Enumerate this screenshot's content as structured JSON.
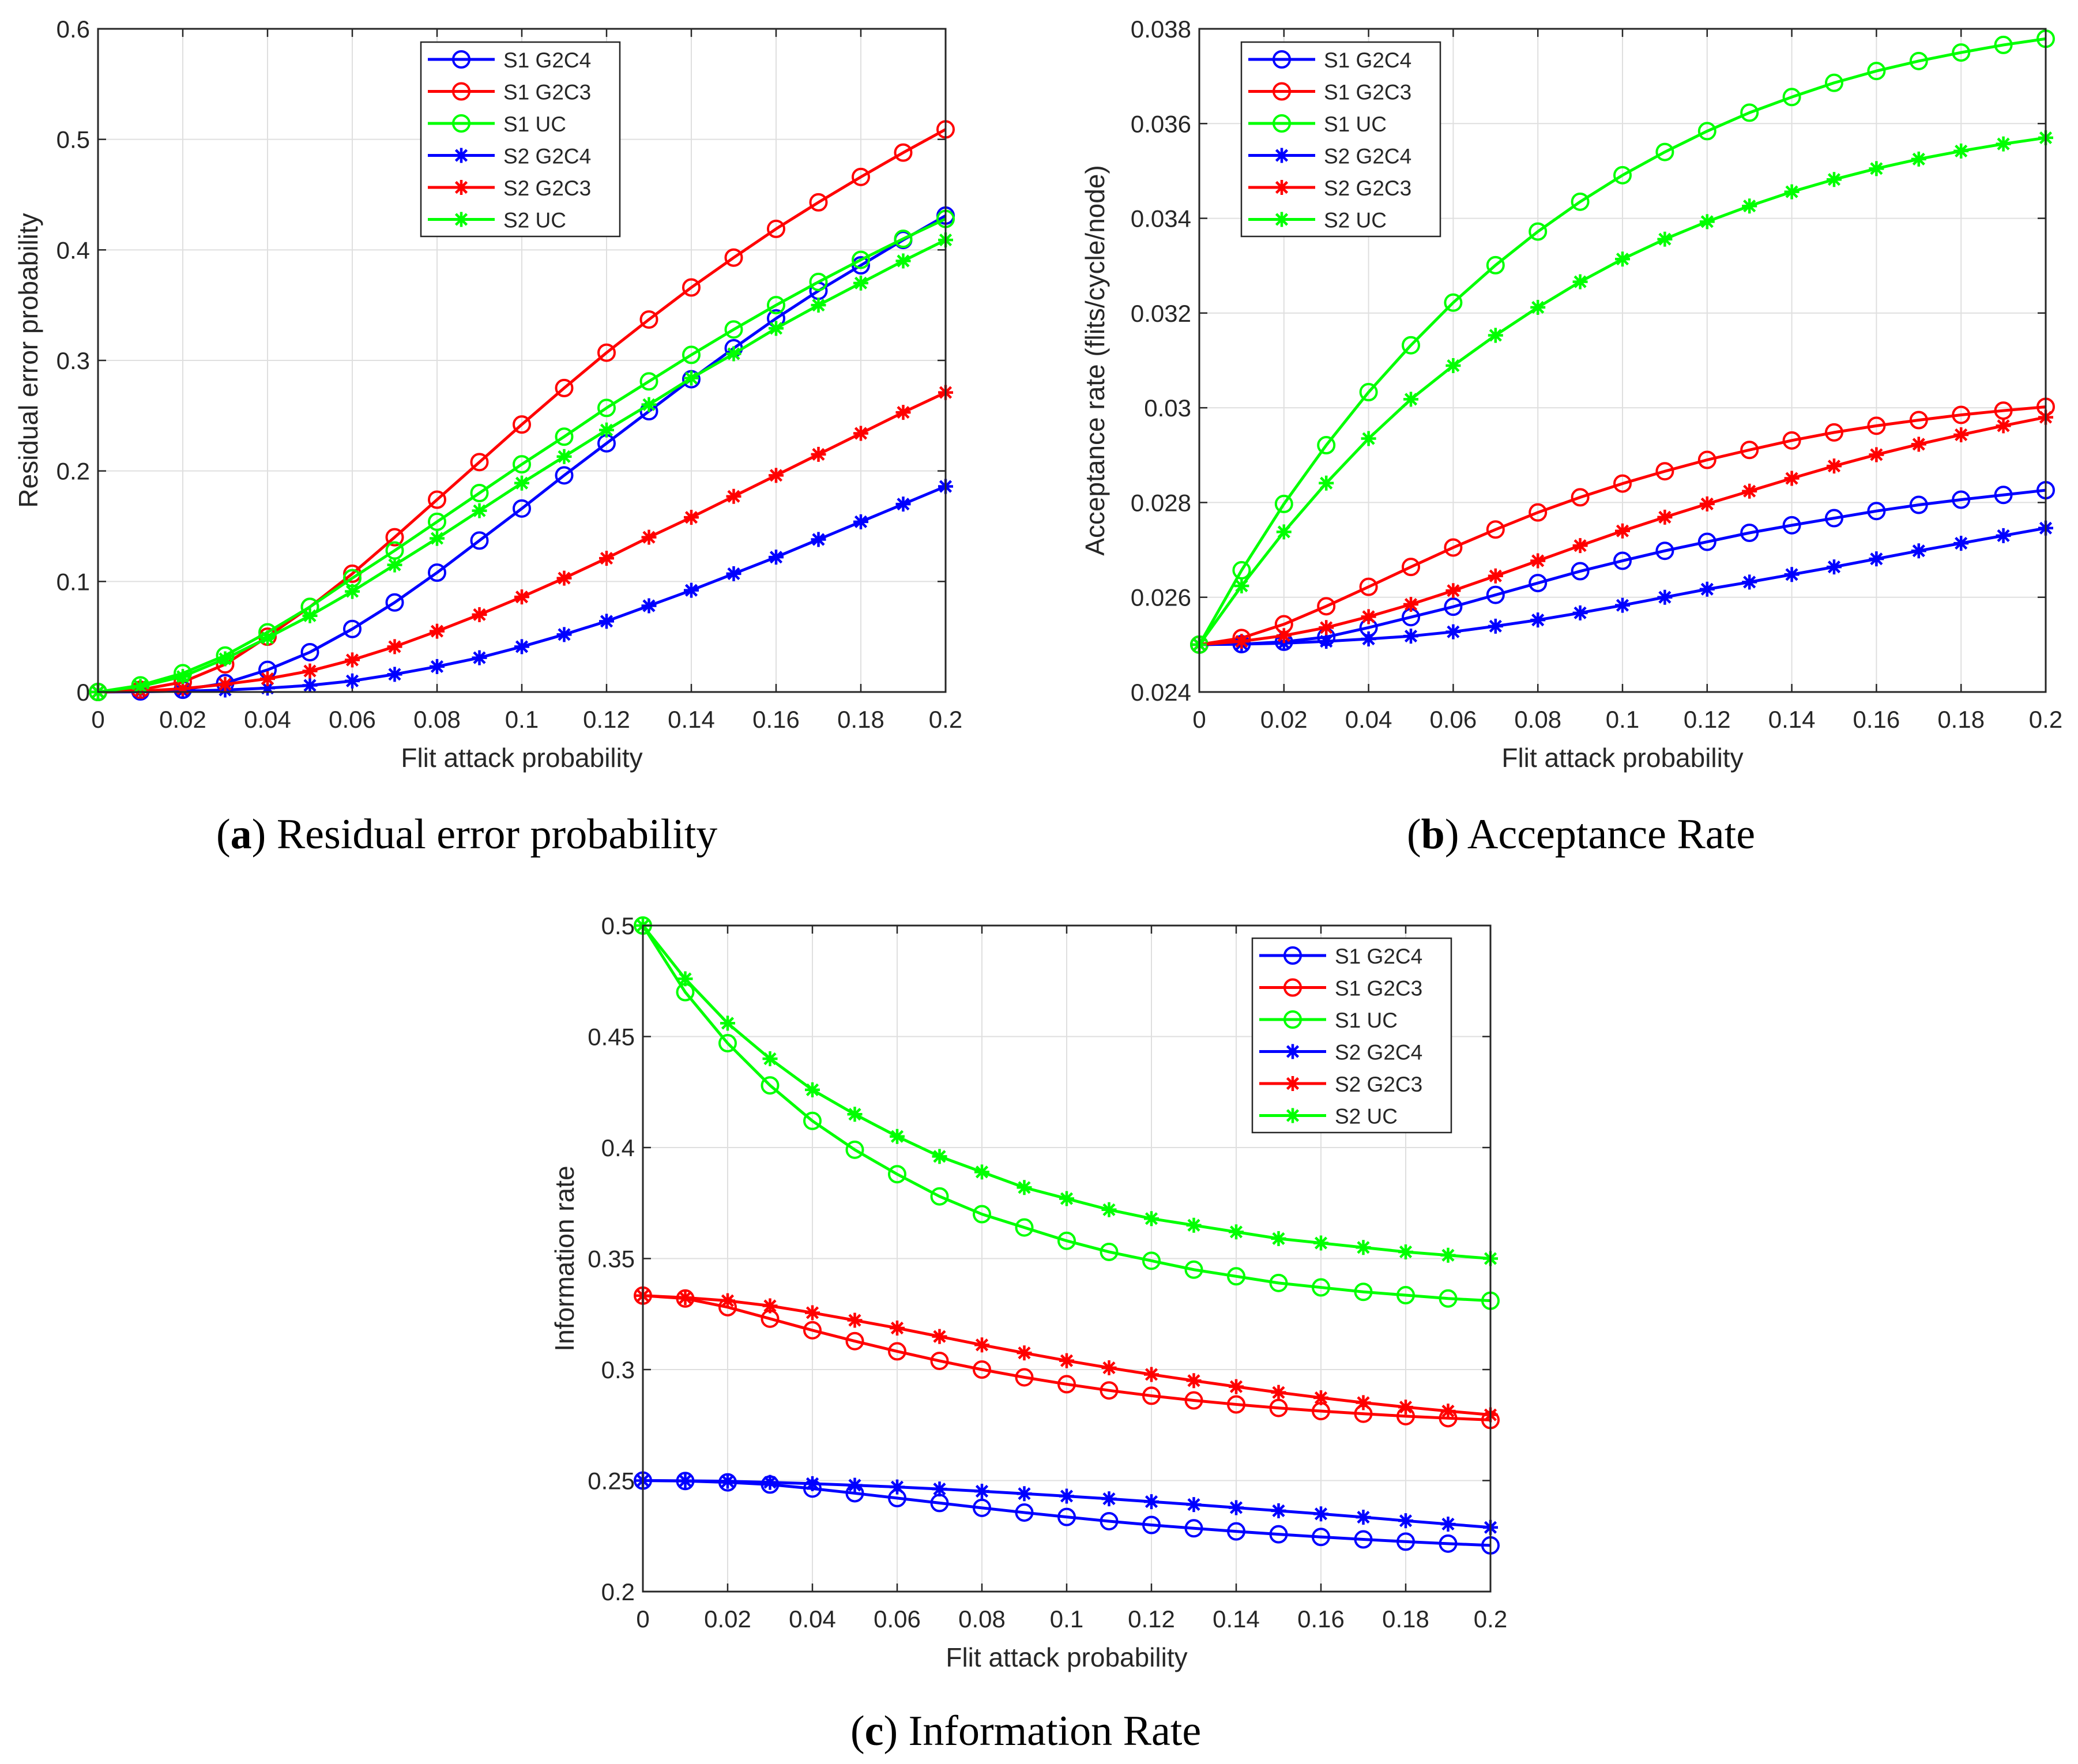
{
  "colors": {
    "blue": "#0000ff",
    "red": "#ff0000",
    "green": "#00ff00",
    "grid": "#dfdfdf",
    "axis": "#262626"
  },
  "captions": [
    {
      "letter": "a",
      "text": "Residual error probability"
    },
    {
      "letter": "b",
      "text": "Acceptance Rate"
    },
    {
      "letter": "c",
      "text": "Information Rate"
    }
  ],
  "chart_data": [
    {
      "type": "line",
      "title": "",
      "xlabel": "Flit attack probability",
      "ylabel": "Residual error probability",
      "xlim": [
        0,
        0.2
      ],
      "ylim": [
        0,
        0.6
      ],
      "xticks": [
        0,
        0.02,
        0.04,
        0.06,
        0.08,
        0.1,
        0.12,
        0.14,
        0.16,
        0.18,
        0.2
      ],
      "xtick_labels": [
        "0",
        "0.02",
        "0.04",
        "0.06",
        "0.08",
        "0.1",
        "0.12",
        "0.14",
        "0.16",
        "0.18",
        "0.2"
      ],
      "yticks": [
        0,
        0.1,
        0.2,
        0.3,
        0.4,
        0.5,
        0.6
      ],
      "ytick_labels": [
        "0",
        "0.1",
        "0.2",
        "0.3",
        "0.4",
        "0.5",
        "0.6"
      ],
      "grid": true,
      "legend_position": "top-center",
      "x": [
        0,
        0.01,
        0.02,
        0.03,
        0.04,
        0.05,
        0.06,
        0.07,
        0.08,
        0.09,
        0.1,
        0.11,
        0.12,
        0.13,
        0.14,
        0.15,
        0.16,
        0.17,
        0.18,
        0.19,
        0.2
      ],
      "series": [
        {
          "name": "S1 G2C4",
          "color": "blue",
          "marker": "circle",
          "values": [
            0,
            0.0005,
            0.002,
            0.008,
            0.02,
            0.036,
            0.057,
            0.081,
            0.108,
            0.137,
            0.166,
            0.196,
            0.225,
            0.254,
            0.283,
            0.311,
            0.338,
            0.363,
            0.386,
            0.409,
            0.431
          ]
        },
        {
          "name": "S1 G2C3",
          "color": "red",
          "marker": "circle",
          "values": [
            0,
            0.002,
            0.009,
            0.025,
            0.05,
            0.077,
            0.107,
            0.14,
            0.174,
            0.208,
            0.242,
            0.275,
            0.307,
            0.337,
            0.366,
            0.393,
            0.419,
            0.443,
            0.466,
            0.488,
            0.509
          ]
        },
        {
          "name": "S1 UC",
          "color": "green",
          "marker": "circle",
          "values": [
            0,
            0.006,
            0.017,
            0.033,
            0.054,
            0.077,
            0.103,
            0.128,
            0.154,
            0.18,
            0.206,
            0.231,
            0.257,
            0.281,
            0.305,
            0.328,
            0.35,
            0.371,
            0.391,
            0.41,
            0.428
          ]
        },
        {
          "name": "S2 G2C4",
          "color": "blue",
          "marker": "star",
          "values": [
            0,
            0.0002,
            0.0007,
            0.0018,
            0.0035,
            0.006,
            0.01,
            0.016,
            0.023,
            0.031,
            0.041,
            0.052,
            0.064,
            0.078,
            0.092,
            0.107,
            0.122,
            0.138,
            0.154,
            0.17,
            0.186
          ]
        },
        {
          "name": "S2 G2C3",
          "color": "red",
          "marker": "star",
          "values": [
            0,
            0.0008,
            0.003,
            0.007,
            0.012,
            0.019,
            0.029,
            0.041,
            0.055,
            0.07,
            0.086,
            0.103,
            0.121,
            0.14,
            0.158,
            0.177,
            0.196,
            0.215,
            0.234,
            0.253,
            0.271
          ]
        },
        {
          "name": "S2 UC",
          "color": "green",
          "marker": "star",
          "values": [
            0,
            0.005,
            0.014,
            0.03,
            0.049,
            0.069,
            0.091,
            0.115,
            0.139,
            0.164,
            0.189,
            0.213,
            0.237,
            0.26,
            0.284,
            0.306,
            0.329,
            0.35,
            0.37,
            0.39,
            0.409
          ]
        }
      ]
    },
    {
      "type": "line",
      "title": "",
      "xlabel": "Flit attack probability",
      "ylabel": "Acceptance rate (flits/cycle/node)",
      "xlim": [
        0,
        0.2
      ],
      "ylim": [
        0.024,
        0.038
      ],
      "xticks": [
        0,
        0.02,
        0.04,
        0.06,
        0.08,
        0.1,
        0.12,
        0.14,
        0.16,
        0.18,
        0.2
      ],
      "xtick_labels": [
        "0",
        "0.02",
        "0.04",
        "0.06",
        "0.08",
        "0.1",
        "0.12",
        "0.14",
        "0.16",
        "0.18",
        "0.2"
      ],
      "yticks": [
        0.024,
        0.026,
        0.028,
        0.03,
        0.032,
        0.034,
        0.036,
        0.038
      ],
      "ytick_labels": [
        "0.024",
        "0.026",
        "0.028",
        "0.03",
        "0.032",
        "0.034",
        "0.036",
        "0.038"
      ],
      "grid": true,
      "legend_position": "top-left",
      "x": [
        0,
        0.01,
        0.02,
        0.03,
        0.04,
        0.05,
        0.06,
        0.07,
        0.08,
        0.09,
        0.1,
        0.11,
        0.12,
        0.13,
        0.14,
        0.15,
        0.16,
        0.17,
        0.18,
        0.19,
        0.2
      ],
      "series": [
        {
          "name": "S1 G2C4",
          "color": "blue",
          "marker": "circle",
          "values": [
            0.025,
            0.02501,
            0.02506,
            0.02516,
            0.02536,
            0.02558,
            0.0258,
            0.02605,
            0.0263,
            0.02655,
            0.02677,
            0.02698,
            0.02717,
            0.02736,
            0.02752,
            0.02767,
            0.02782,
            0.02795,
            0.02806,
            0.02816,
            0.02826
          ]
        },
        {
          "name": "S1 G2C3",
          "color": "red",
          "marker": "circle",
          "values": [
            0.025,
            0.02514,
            0.02543,
            0.02581,
            0.02622,
            0.02664,
            0.02705,
            0.02743,
            0.02779,
            0.02811,
            0.0284,
            0.02866,
            0.0289,
            0.02911,
            0.02931,
            0.02948,
            0.02962,
            0.02974,
            0.02985,
            0.02994,
            0.03002
          ]
        },
        {
          "name": "S1 UC",
          "color": "green",
          "marker": "circle",
          "values": [
            0.025,
            0.02657,
            0.02797,
            0.02921,
            0.03033,
            0.03132,
            0.03222,
            0.03301,
            0.03372,
            0.03435,
            0.03491,
            0.0354,
            0.03584,
            0.03623,
            0.03656,
            0.03686,
            0.03711,
            0.03732,
            0.0375,
            0.03766,
            0.03779
          ]
        },
        {
          "name": "S2 G2C4",
          "color": "blue",
          "marker": "star",
          "values": [
            0.025,
            0.02501,
            0.02503,
            0.02507,
            0.02512,
            0.02518,
            0.02527,
            0.02539,
            0.02552,
            0.02567,
            0.02583,
            0.026,
            0.02617,
            0.02632,
            0.02648,
            0.02664,
            0.02681,
            0.02698,
            0.02714,
            0.0273,
            0.02746
          ]
        },
        {
          "name": "S2 G2C3",
          "color": "red",
          "marker": "star",
          "values": [
            0.025,
            0.02507,
            0.02519,
            0.02536,
            0.02559,
            0.02585,
            0.02614,
            0.02645,
            0.02677,
            0.02709,
            0.0274,
            0.02769,
            0.02797,
            0.02824,
            0.02851,
            0.02877,
            0.02901,
            0.02923,
            0.02943,
            0.02962,
            0.0298
          ]
        },
        {
          "name": "S2 UC",
          "color": "green",
          "marker": "star",
          "values": [
            0.025,
            0.02624,
            0.02738,
            0.02841,
            0.02935,
            0.03018,
            0.03089,
            0.03153,
            0.03212,
            0.03266,
            0.03314,
            0.03356,
            0.03393,
            0.03426,
            0.03456,
            0.03482,
            0.03505,
            0.03525,
            0.03542,
            0.03557,
            0.0357
          ]
        }
      ]
    },
    {
      "type": "line",
      "title": "",
      "xlabel": "Flit attack probability",
      "ylabel": "Information rate",
      "xlim": [
        0,
        0.2
      ],
      "ylim": [
        0.2,
        0.5
      ],
      "xticks": [
        0,
        0.02,
        0.04,
        0.06,
        0.08,
        0.1,
        0.12,
        0.14,
        0.16,
        0.18,
        0.2
      ],
      "xtick_labels": [
        "0",
        "0.02",
        "0.04",
        "0.06",
        "0.08",
        "0.1",
        "0.12",
        "0.14",
        "0.16",
        "0.18",
        "0.2"
      ],
      "yticks": [
        0.2,
        0.25,
        0.3,
        0.35,
        0.4,
        0.45,
        0.5
      ],
      "ytick_labels": [
        "0.2",
        "0.25",
        "0.3",
        "0.35",
        "0.4",
        "0.45",
        "0.5"
      ],
      "grid": true,
      "legend_position": "top-right",
      "x": [
        0,
        0.01,
        0.02,
        0.03,
        0.04,
        0.05,
        0.06,
        0.07,
        0.08,
        0.09,
        0.1,
        0.11,
        0.12,
        0.13,
        0.14,
        0.15,
        0.16,
        0.17,
        0.18,
        0.19,
        0.2
      ],
      "series": [
        {
          "name": "S1 G2C4",
          "color": "blue",
          "marker": "circle",
          "values": [
            0.25,
            0.2498,
            0.2492,
            0.2482,
            0.2464,
            0.2443,
            0.2421,
            0.2399,
            0.2377,
            0.2356,
            0.2336,
            0.2317,
            0.23,
            0.2285,
            0.2271,
            0.2258,
            0.2246,
            0.2235,
            0.2225,
            0.2216,
            0.2208
          ]
        },
        {
          "name": "S1 G2C3",
          "color": "red",
          "marker": "circle",
          "values": [
            0.3333,
            0.332,
            0.3281,
            0.3229,
            0.3177,
            0.3128,
            0.3082,
            0.3039,
            0.3,
            0.2965,
            0.2934,
            0.2906,
            0.2882,
            0.2861,
            0.2843,
            0.2827,
            0.2813,
            0.2801,
            0.279,
            0.2781,
            0.2773
          ]
        },
        {
          "name": "S1 UC",
          "color": "green",
          "marker": "circle",
          "values": [
            0.5,
            0.47,
            0.447,
            0.428,
            0.412,
            0.399,
            0.388,
            0.378,
            0.37,
            0.364,
            0.358,
            0.353,
            0.349,
            0.345,
            0.342,
            0.339,
            0.337,
            0.335,
            0.3335,
            0.332,
            0.331
          ]
        },
        {
          "name": "S2 G2C4",
          "color": "blue",
          "marker": "star",
          "values": [
            0.25,
            0.2499,
            0.2497,
            0.2492,
            0.2486,
            0.2479,
            0.2471,
            0.2462,
            0.2452,
            0.2441,
            0.243,
            0.2418,
            0.2405,
            0.2392,
            0.2378,
            0.2364,
            0.235,
            0.2335,
            0.2319,
            0.2304,
            0.2289
          ]
        },
        {
          "name": "S2 G2C3",
          "color": "red",
          "marker": "star",
          "values": [
            0.3333,
            0.3324,
            0.331,
            0.3287,
            0.3256,
            0.3222,
            0.3187,
            0.3149,
            0.3111,
            0.3075,
            0.304,
            0.3008,
            0.2978,
            0.295,
            0.2923,
            0.2897,
            0.2873,
            0.2851,
            0.2831,
            0.2813,
            0.2796
          ]
        },
        {
          "name": "S2 UC",
          "color": "green",
          "marker": "star",
          "values": [
            0.5,
            0.476,
            0.456,
            0.44,
            0.426,
            0.415,
            0.405,
            0.396,
            0.389,
            0.382,
            0.377,
            0.372,
            0.368,
            0.365,
            0.362,
            0.359,
            0.357,
            0.355,
            0.353,
            0.3515,
            0.35
          ]
        }
      ]
    }
  ]
}
